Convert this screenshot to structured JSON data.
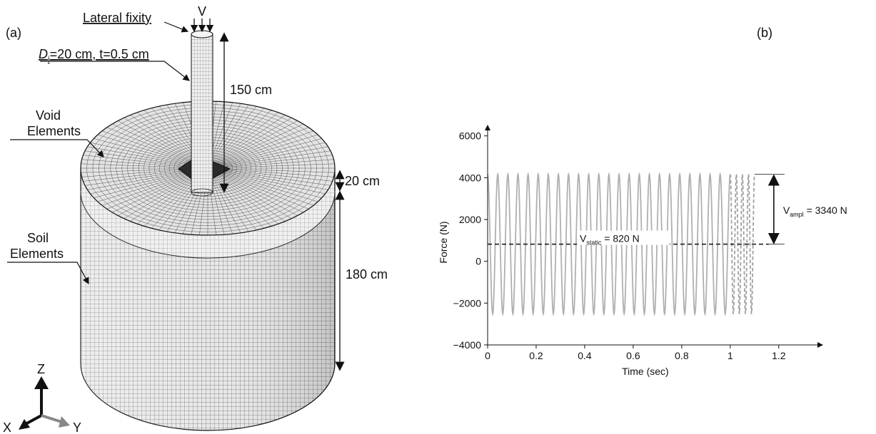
{
  "panel_a": {
    "panel_label": "(a)",
    "load_label": "V",
    "lateral_fixity": "Lateral fixity",
    "pile_dim_prefix": "D",
    "pile_dim_sub": "i",
    "pile_dim_rest": "=20 cm, t=0.5 cm",
    "pile_length": "150 cm",
    "void_label_1": "Void",
    "void_label_2": "Elements",
    "soil_label_1": "Soil",
    "soil_label_2": "Elements",
    "top_layer": "20 cm",
    "soil_depth": "180 cm",
    "axes": {
      "z": "Z",
      "x": "X",
      "y": "Y"
    }
  },
  "panel_b": {
    "panel_label": "(b)",
    "static_label": {
      "base": "V",
      "sub": "static",
      "rest": " = 820 N"
    },
    "ampl_label": {
      "base": "V",
      "sub": "ampl",
      "rest": " = 3340 N"
    }
  },
  "chart_data": {
    "type": "line",
    "xlabel": "Time (sec)",
    "ylabel": "Force (N)",
    "xlim": [
      0,
      1.3
    ],
    "ylim": [
      -4000,
      6500
    ],
    "xticks": [
      0,
      0.2,
      0.4,
      0.6,
      0.8,
      1,
      1.2
    ],
    "yticks": [
      -4000,
      -2000,
      0,
      2000,
      4000,
      6000
    ],
    "xtick_labels": [
      "0",
      "0.2",
      "0.4",
      "0.6",
      "0.8",
      "1",
      "1.2"
    ],
    "ytick_labels": [
      "−4000",
      "−2000",
      "0",
      "2000",
      "4000",
      "6000"
    ],
    "series": [
      {
        "style": "solid",
        "color": "#b0b0b0",
        "mean": 820,
        "amplitude": 3340,
        "cycles": 24,
        "t_start": 0,
        "t_end": 1.0
      },
      {
        "style": "dashed",
        "color": "#a0a0a0",
        "mean": 820,
        "amplitude": 3340,
        "cycles": 4,
        "t_start": 1.0,
        "t_end": 1.1
      }
    ],
    "static_level": 820,
    "max_level": 4160,
    "colors": {
      "signal": "#b0b0b0",
      "reference": "#111111"
    }
  }
}
